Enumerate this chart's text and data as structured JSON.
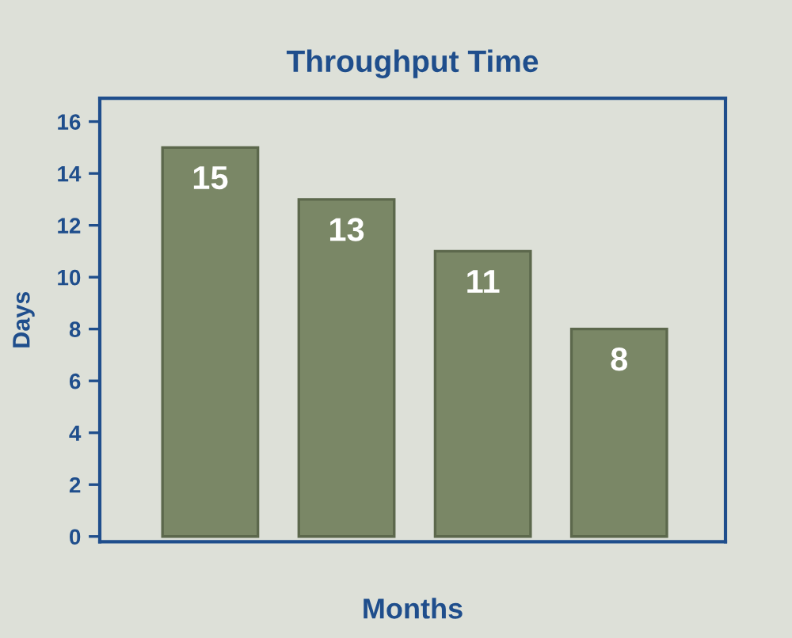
{
  "chart_data": {
    "type": "bar",
    "title": "Throughput Time",
    "xlabel": "Months",
    "ylabel": "Days",
    "categories": [
      null,
      null,
      null,
      null
    ],
    "values": [
      15,
      13,
      11,
      8
    ],
    "color": "#7a8766",
    "ylim": [
      -0.2,
      16.9
    ],
    "yticks": [
      0,
      2,
      4,
      6,
      8,
      10,
      12,
      14,
      16
    ],
    "data_labels": true,
    "grid": false,
    "legend": false
  }
}
